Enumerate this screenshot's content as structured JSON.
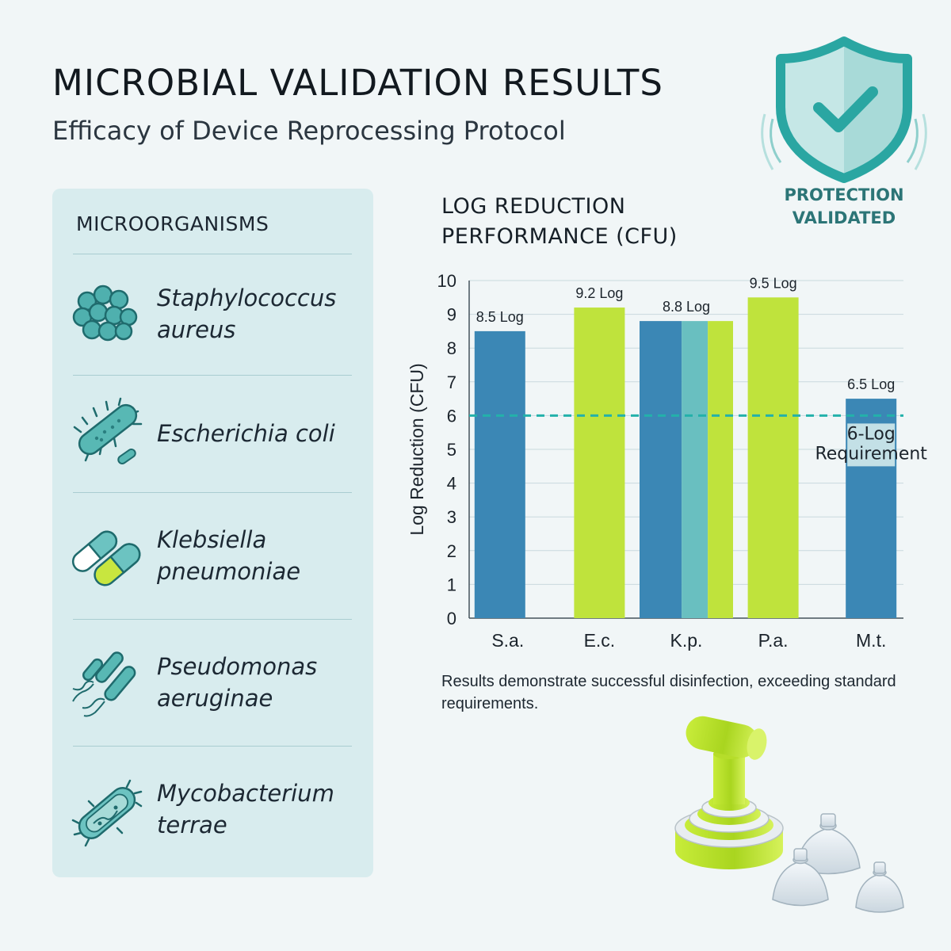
{
  "header": {
    "title": "MICROBIAL VALIDATION RESULTS",
    "subtitle": "Efficacy of Device Reprocessing Protocol"
  },
  "badge": {
    "icon": "shield-check-icon",
    "line1": "PROTECTION",
    "line2": "VALIDATED"
  },
  "sidebar": {
    "title": "MICROORGANISMS",
    "items": [
      {
        "name": "Staphylococcus\naureus",
        "icon": "staph-cluster-icon"
      },
      {
        "name": "Escherichia coli",
        "icon": "rod-bacterium-icon"
      },
      {
        "name": "Klebsiella\npneumoniae",
        "icon": "capsule-bacterium-icon"
      },
      {
        "name": "Pseudomonas\naeruginae",
        "icon": "flagellated-bacterium-icon"
      },
      {
        "name": "Mycobacterium\nterrae",
        "icon": "mycobacterium-icon"
      }
    ]
  },
  "chart_data": {
    "type": "bar",
    "title": "LOG REDUCTION\nPERFORMANCE (CFU)",
    "ylabel": "Log Reduction (CFU)",
    "xlabel": "",
    "ylim": [
      0,
      10
    ],
    "yticks": [
      0,
      1,
      2,
      3,
      4,
      5,
      6,
      7,
      8,
      9,
      10
    ],
    "grid": true,
    "categories": [
      "S.a.",
      "E.c.",
      "K.p.",
      "P.a.",
      "M.t."
    ],
    "values": [
      8.5,
      9.2,
      8.8,
      9.5,
      6.5
    ],
    "data_labels": [
      "8.5 Log",
      "9.2 Log",
      "8.8 Log",
      "9.5 Log",
      "6.5 Log"
    ],
    "reference_line": {
      "value": 6,
      "label": "6-Log\nRequirement"
    },
    "colors": {
      "blue": "#3b87b5",
      "lime": "#bfe33c",
      "teal": "#69bfc0",
      "reference": "#23b1aa"
    }
  },
  "caption": "Results demonstrate successful disinfection, exceeding standard requirements.",
  "device": {
    "icon": "valve-device-icon"
  }
}
